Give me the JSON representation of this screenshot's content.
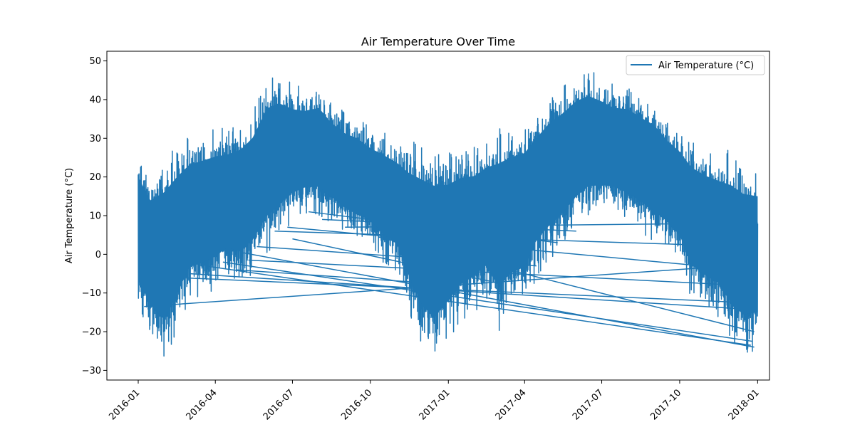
{
  "chart_data": {
    "type": "line",
    "title": "Air Temperature Over Time",
    "xlabel": "",
    "ylabel": "Air Temperature (°C)",
    "xlim": [
      "2015-11-25",
      "2018-01-15"
    ],
    "ylim": [
      -32.5,
      52.5
    ],
    "x_ticks": [
      "2016-01",
      "2016-04",
      "2016-07",
      "2016-10",
      "2017-01",
      "2017-04",
      "2017-07",
      "2017-10",
      "2018-01"
    ],
    "y_ticks": [
      -30,
      -20,
      -10,
      0,
      10,
      20,
      30,
      40,
      50
    ],
    "legend": {
      "position": "top-right",
      "entries": [
        "Air Temperature (°C)"
      ]
    },
    "grid": false,
    "series": [
      {
        "name": "Air Temperature (°C)",
        "color": "#1f77b4",
        "envelope": {
          "x": [
            "2016-01-01",
            "2016-01-15",
            "2016-02-01",
            "2016-02-15",
            "2016-03-01",
            "2016-03-15",
            "2016-04-01",
            "2016-04-15",
            "2016-05-01",
            "2016-05-15",
            "2016-06-01",
            "2016-06-15",
            "2016-07-01",
            "2016-07-15",
            "2016-08-01",
            "2016-08-15",
            "2016-09-01",
            "2016-09-15",
            "2016-10-01",
            "2016-10-15",
            "2016-11-01",
            "2016-11-15",
            "2016-12-01",
            "2016-12-15",
            "2017-01-01",
            "2017-01-15",
            "2017-02-01",
            "2017-02-15",
            "2017-03-01",
            "2017-03-15",
            "2017-04-01",
            "2017-04-15",
            "2017-05-01",
            "2017-05-15",
            "2017-06-01",
            "2017-06-15",
            "2017-07-01",
            "2017-07-15",
            "2017-08-01",
            "2017-08-15",
            "2017-09-01",
            "2017-09-15",
            "2017-10-01",
            "2017-10-15",
            "2017-11-01",
            "2017-11-15",
            "2017-12-01",
            "2017-12-15",
            "2018-01-01"
          ],
          "max": [
            28,
            22,
            26,
            29,
            31,
            32,
            33,
            33,
            35,
            38,
            46,
            47,
            44,
            43,
            44,
            40,
            37,
            36,
            33,
            32,
            30,
            29,
            29,
            28,
            27,
            28,
            28,
            30,
            33,
            34,
            35,
            38,
            42,
            44,
            47,
            48,
            46,
            44,
            44,
            42,
            40,
            36,
            33,
            30,
            28,
            27,
            27,
            25,
            24
          ],
          "min": [
            -16,
            -23,
            -29,
            -22,
            -13,
            -12,
            -10,
            -7,
            -9,
            -6,
            0,
            3,
            8,
            10,
            10,
            8,
            5,
            3,
            2,
            -2,
            -5,
            -15,
            -25,
            -29,
            -23,
            -18,
            -15,
            -12,
            -20,
            -16,
            -14,
            -6,
            -2,
            1,
            6,
            9,
            10,
            10,
            8,
            6,
            3,
            1,
            -3,
            -12,
            -15,
            -17,
            -24,
            -27,
            -26
          ]
        },
        "connector_lines": [
          [
            [
              "2016-01-08",
              -13.5
            ],
            [
              "2017-11-30",
              -3
            ]
          ],
          [
            [
              "2016-02-15",
              -6
            ],
            [
              "2017-12-20",
              -12.5
            ]
          ],
          [
            [
              "2016-03-20",
              -3
            ],
            [
              "2017-12-24",
              -23.5
            ]
          ],
          [
            [
              "2016-04-10",
              -2
            ],
            [
              "2017-12-26",
              -22.5
            ]
          ],
          [
            [
              "2016-05-01",
              0.5
            ],
            [
              "2017-12-28",
              -24
            ]
          ],
          [
            [
              "2016-05-20",
              2
            ],
            [
              "2017-04-15",
              -3
            ]
          ],
          [
            [
              "2016-06-10",
              6
            ],
            [
              "2017-10-10",
              2.5
            ]
          ],
          [
            [
              "2016-07-01",
              4
            ],
            [
              "2017-02-20",
              -7
            ]
          ],
          [
            [
              "2016-08-05",
              9
            ],
            [
              "2017-06-01",
              6
            ]
          ],
          [
            [
              "2016-09-01",
              7
            ],
            [
              "2017-11-20",
              8
            ]
          ],
          [
            [
              "2016-05-10",
              -1.5
            ],
            [
              "2017-12-10",
              -8
            ]
          ],
          [
            [
              "2016-04-25",
              -4
            ],
            [
              "2017-01-15",
              -8
            ]
          ],
          [
            [
              "2016-06-25",
              7
            ],
            [
              "2017-12-15",
              -4
            ]
          ],
          [
            [
              "2016-03-01",
              -5
            ],
            [
              "2017-12-05",
              -14
            ]
          ],
          [
            [
              "2016-07-20",
              11
            ],
            [
              "2017-05-10",
              3
            ]
          ],
          [
            [
              "2016-10-10",
              4.5
            ],
            [
              "2017-12-28",
              -20
            ]
          ]
        ]
      }
    ]
  }
}
